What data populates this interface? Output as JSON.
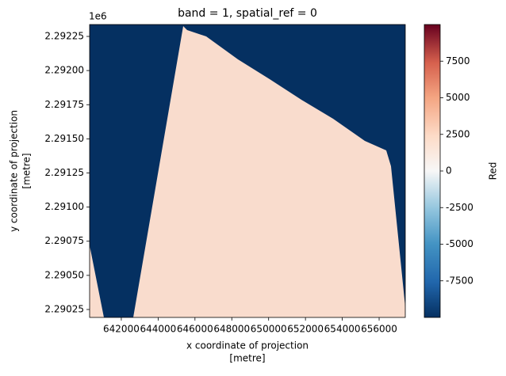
{
  "chart_data": {
    "type": "raster",
    "title": "band = 1, spatial_ref = 0",
    "xlabel": [
      "x coordinate of projection",
      "[metre]"
    ],
    "ylabel": [
      "y coordinate of projection",
      "[metre]"
    ],
    "y_offset_text": "1e6",
    "xlim": [
      640280,
      657420
    ],
    "xticks": [
      642000,
      644000,
      646000,
      648000,
      650000,
      652000,
      654000,
      656000
    ],
    "ylim": [
      2.290192,
      2.292337
    ],
    "yticks": [
      {
        "value": 2.29025,
        "label": "2.29025"
      },
      {
        "value": 2.2905,
        "label": "2.29050"
      },
      {
        "value": 2.29075,
        "label": "2.29075"
      },
      {
        "value": 2.291,
        "label": "2.29100"
      },
      {
        "value": 2.29125,
        "label": "2.29125"
      },
      {
        "value": 2.2915,
        "label": "2.29150"
      },
      {
        "value": 2.29175,
        "label": "2.29175"
      },
      {
        "value": 2.292,
        "label": "2.29200"
      },
      {
        "value": 2.29225,
        "label": "2.29225"
      }
    ],
    "colorbar": {
      "label": "Red",
      "colormap": "RdBu_r",
      "clim": [
        -10000,
        10000
      ],
      "ticks": [
        -7500,
        -5000,
        -2500,
        0,
        2500,
        5000,
        7500
      ]
    }
  }
}
